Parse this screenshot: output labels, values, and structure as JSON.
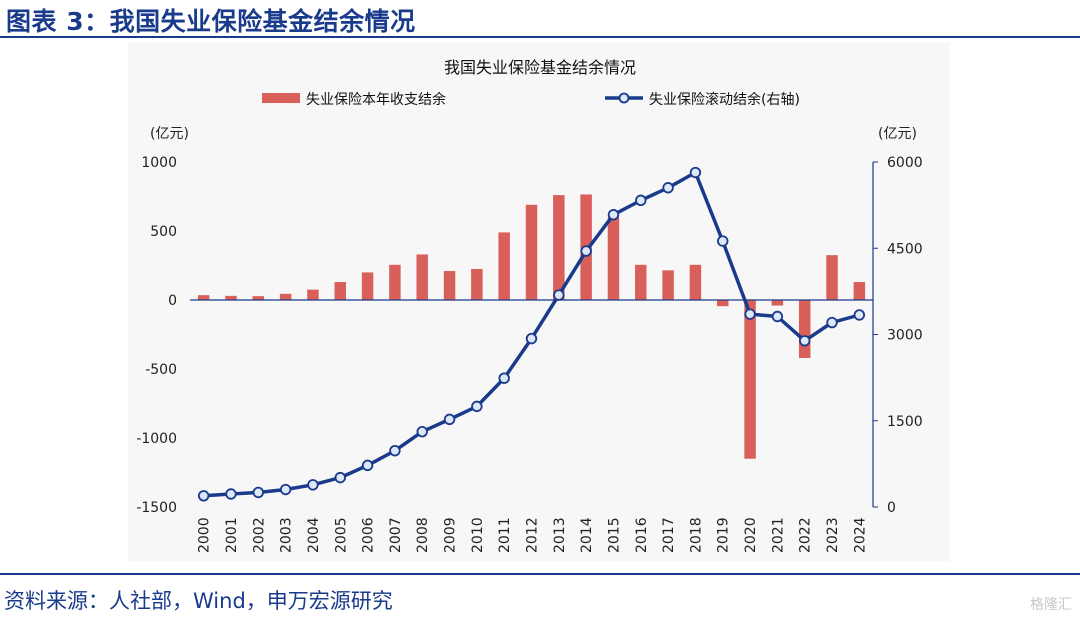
{
  "figure": {
    "title": "图表 3：我国失业保险基金结余情况",
    "source": "资料来源：人社部，Wind，申万宏源研究",
    "watermark": "格隆汇"
  },
  "colors": {
    "bar": "#d95f5a",
    "line": "#1a3a8c",
    "marker_fill": "#dce8f5",
    "frame": "#1a3a8c"
  },
  "chart_data": {
    "type": "bar+line",
    "title": "我国失业保险基金结余情况",
    "categories": [
      "2000",
      "2001",
      "2002",
      "2003",
      "2004",
      "2005",
      "2006",
      "2007",
      "2008",
      "2009",
      "2010",
      "2011",
      "2012",
      "2013",
      "2014",
      "2015",
      "2016",
      "2017",
      "2018",
      "2019",
      "2020",
      "2021",
      "2022",
      "2023",
      "2024"
    ],
    "left_axis": {
      "unit": "(亿元)",
      "ylim": [
        -1500,
        1000
      ],
      "ticks": [
        1000,
        500,
        0,
        -500,
        -1000,
        -1500
      ]
    },
    "right_axis": {
      "unit": "(亿元)",
      "ylim": [
        0,
        6000
      ],
      "ticks": [
        6000,
        4500,
        3000,
        1500,
        0
      ]
    },
    "series": [
      {
        "name": "失业保险本年收支结余",
        "type": "bar",
        "axis": "left",
        "values": [
          35,
          30,
          28,
          45,
          75,
          130,
          200,
          255,
          330,
          210,
          225,
          490,
          690,
          760,
          765,
          600,
          255,
          215,
          255,
          -45,
          -1150,
          -40,
          -420,
          325,
          130
        ]
      },
      {
        "name": "失业保险滚动结余(右轴)",
        "type": "line",
        "axis": "right",
        "values": [
          195,
          226,
          253,
          304,
          386,
          511,
          724,
          979,
          1310,
          1524,
          1750,
          2240,
          2929,
          3686,
          4451,
          5083,
          5333,
          5552,
          5817,
          4625,
          3354,
          3313,
          2891,
          3208,
          3340
        ]
      }
    ],
    "legend": "top"
  }
}
